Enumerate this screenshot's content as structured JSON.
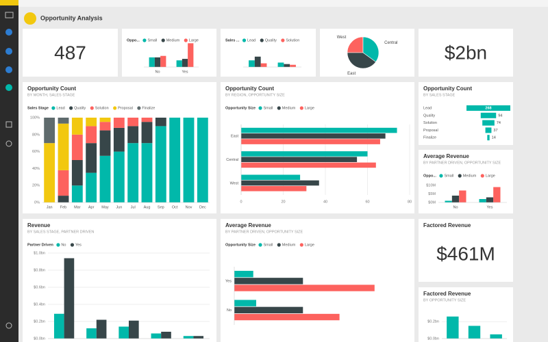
{
  "header": {
    "title": "Opportunity Analysis"
  },
  "chart_data": [
    {
      "type": "card",
      "text": "487"
    },
    {
      "type": "column",
      "legend_title": "Oppo...",
      "categories": [
        "No",
        "Yes"
      ],
      "series": [
        {
          "name": "Small",
          "color": "#01B8AA",
          "values": [
            13,
            9
          ]
        },
        {
          "name": "Medium",
          "color": "#374649",
          "values": [
            13,
            11
          ]
        },
        {
          "name": "Large",
          "color": "#FD625E",
          "values": [
            15,
            32
          ]
        }
      ],
      "ylim": [
        0,
        35
      ]
    },
    {
      "type": "column",
      "legend_title": "Sales ...",
      "categories": [
        null,
        null
      ],
      "series": [
        {
          "name": "Lead",
          "color": "#01B8AA",
          "values": [
            9,
            6
          ]
        },
        {
          "name": "Quality",
          "color": "#374649",
          "values": [
            14,
            4
          ]
        },
        {
          "name": "Solution",
          "color": "#FD625E",
          "values": [
            5,
            3
          ]
        }
      ],
      "ylim": [
        0,
        35
      ]
    },
    {
      "type": "pie",
      "categories": [
        "West",
        "Central",
        "East"
      ],
      "values": [
        25,
        35,
        40
      ],
      "colors": [
        "#FD625E",
        "#01B8AA",
        "#374649"
      ]
    },
    {
      "type": "card",
      "text": "$2bn"
    },
    {
      "type": "column",
      "stacked": true,
      "title": "Opportunity Count",
      "subtitle": "BY MONTH, SALES STAGE",
      "legend_title": "Sales Stage",
      "categories": [
        "Jan",
        "Feb",
        "Mar",
        "Apr",
        "May",
        "Jun",
        "Jul",
        "Aug",
        "Sep",
        "Oct",
        "Nov",
        "Dec"
      ],
      "series": [
        {
          "name": "Lead",
          "color": "#01B8AA",
          "values": [
            0,
            0,
            20,
            35,
            55,
            60,
            70,
            70,
            90,
            100,
            100,
            100
          ]
        },
        {
          "name": "Quality",
          "color": "#374649",
          "values": [
            0,
            8,
            30,
            35,
            30,
            28,
            20,
            25,
            10,
            0,
            0,
            0
          ]
        },
        {
          "name": "Solution",
          "color": "#FD625E",
          "values": [
            0,
            30,
            30,
            20,
            10,
            12,
            10,
            5,
            0,
            0,
            0,
            0
          ]
        },
        {
          "name": "Proposal",
          "color": "#F2C80F",
          "values": [
            70,
            55,
            20,
            10,
            5,
            0,
            0,
            0,
            0,
            0,
            0,
            0
          ]
        },
        {
          "name": "Finalize",
          "color": "#5F6B6D",
          "values": [
            30,
            7,
            0,
            0,
            0,
            0,
            0,
            0,
            0,
            0,
            0,
            0
          ]
        }
      ],
      "ylim": [
        0,
        100
      ],
      "yticks": [
        {
          "value": 0,
          "label": "0%"
        },
        {
          "value": 20,
          "label": "20%"
        },
        {
          "value": 40,
          "label": "40%"
        },
        {
          "value": 60,
          "label": "60%"
        },
        {
          "value": 80,
          "label": "80%"
        },
        {
          "value": 100,
          "label": "100%"
        }
      ]
    },
    {
      "type": "hbar",
      "title": "Opportunity Count",
      "subtitle": "BY REGION, OPPORTUNITY SIZE",
      "legend_title": "Opportunity Size",
      "categories": [
        "East",
        "Central",
        "West"
      ],
      "series": [
        {
          "name": "Small",
          "color": "#01B8AA",
          "values": [
            74,
            60,
            28
          ]
        },
        {
          "name": "Medium",
          "color": "#374649",
          "values": [
            68.5,
            55,
            37
          ]
        },
        {
          "name": "Large",
          "color": "#FD625E",
          "values": [
            66,
            64,
            31
          ]
        }
      ],
      "xlim": [
        0,
        80
      ],
      "xticks": [
        0,
        20,
        40,
        60,
        80
      ],
      "grid": true
    },
    {
      "type": "funnel",
      "title": "Opportunity Count",
      "subtitle": "BY SALES STAGE",
      "categories": [
        "Lead",
        "Quality",
        "Solution",
        "Proposal",
        "Finalize"
      ],
      "values": [
        268,
        94,
        74,
        37,
        14
      ],
      "color": "#01B8AA"
    },
    {
      "type": "column",
      "title": "Average Revenue",
      "subtitle": "BY PARTNER DRIVEN, OPPORTUNITY SIZE",
      "legend_title": "Oppo...",
      "categories": [
        "No",
        "Yes"
      ],
      "series": [
        {
          "name": "Small",
          "color": "#01B8AA",
          "values": [
            1,
            2
          ]
        },
        {
          "name": "Medium",
          "color": "#374649",
          "values": [
            4,
            3
          ]
        },
        {
          "name": "Large",
          "color": "#FD625E",
          "values": [
            7,
            9
          ]
        }
      ],
      "ylim": [
        0,
        12
      ],
      "yticks": [
        {
          "value": 0,
          "label": "$0M"
        },
        {
          "value": 5,
          "label": "$5M"
        },
        {
          "value": 10,
          "label": "$10M"
        }
      ]
    },
    {
      "type": "column",
      "title": "Revenue",
      "subtitle": "BY SALES STAGE, PARTNER DRIVEN",
      "legend_title": "Partner Driven",
      "categories": [
        null,
        null,
        null,
        null,
        null
      ],
      "series": [
        {
          "name": "No",
          "color": "#01B8AA",
          "values": [
            0.29,
            0.12,
            0.14,
            0.06,
            0.03
          ]
        },
        {
          "name": "Yes",
          "color": "#374649",
          "values": [
            0.94,
            0.22,
            0.21,
            0.08,
            0.03
          ]
        }
      ],
      "ylim": [
        0,
        1
      ],
      "yticks": [
        {
          "value": 0,
          "label": "$0.0bn"
        },
        {
          "value": 0.2,
          "label": "$0.2bn"
        },
        {
          "value": 0.4,
          "label": "$0.4bn"
        },
        {
          "value": 0.6,
          "label": "$0.6bn"
        },
        {
          "value": 0.8,
          "label": "$0.8bn"
        },
        {
          "value": 1,
          "label": "$1.0bn"
        }
      ],
      "grid": true
    },
    {
      "type": "hbar",
      "title": "Average Revenue",
      "subtitle": "BY PARTNER DRIVEN, OPPORTUNITY SIZE",
      "legend_title": "Opportunity Size",
      "categories": [
        "Yes",
        "No"
      ],
      "series": [
        {
          "name": "Small",
          "color": "#01B8AA",
          "values": [
            1.3,
            1.5
          ]
        },
        {
          "name": "Medium",
          "color": "#374649",
          "values": [
            4.7,
            4.7
          ]
        },
        {
          "name": "Large",
          "color": "#FD625E",
          "values": [
            9.6,
            7.2
          ]
        }
      ],
      "xlim": [
        0,
        12
      ]
    },
    {
      "type": "card",
      "title": "Factored Revenue",
      "text": "$461M"
    },
    {
      "type": "column",
      "title": "Factored Revenue",
      "subtitle": "BY OPPORTUNITY SIZE",
      "categories": [
        null,
        null,
        null
      ],
      "values": [
        0.26,
        0.15,
        0.05
      ],
      "color": "#01B8AA",
      "ylim": [
        0,
        0.25
      ],
      "yticks": [
        {
          "value": 0,
          "label": "$0.0bn"
        },
        {
          "value": 0.2,
          "label": "$0.2bn"
        }
      ],
      "grid": true
    }
  ]
}
